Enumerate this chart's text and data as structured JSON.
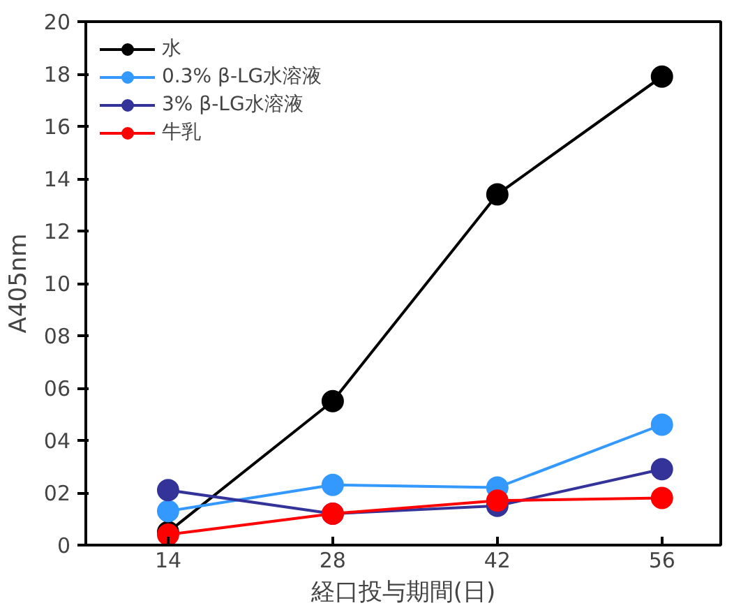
{
  "chart_data": {
    "type": "line",
    "xlabel": "経口投与期間(日)",
    "ylabel": "A405nm",
    "x": [
      14,
      28,
      42,
      56
    ],
    "series": [
      {
        "name": "水",
        "color": "#000000",
        "values": [
          0.5,
          5.5,
          13.4,
          17.9
        ]
      },
      {
        "name": "0.3% β-LG水溶液",
        "color": "#3399ff",
        "values": [
          1.3,
          2.3,
          2.2,
          4.6
        ]
      },
      {
        "name": "3% β-LG水溶液",
        "color": "#333399",
        "values": [
          2.1,
          1.2,
          1.5,
          2.9
        ]
      },
      {
        "name": "牛乳",
        "color": "#ff0000",
        "values": [
          0.4,
          1.2,
          1.7,
          1.8
        ]
      }
    ],
    "xlim": [
      7,
      61
    ],
    "xticks": [
      14,
      28,
      42,
      56
    ],
    "ylim": [
      0,
      20
    ],
    "yticks": [
      0,
      {
        "value": 2,
        "label": "02"
      },
      {
        "value": 4,
        "label": "04"
      },
      {
        "value": 6,
        "label": "06"
      },
      {
        "value": 8,
        "label": "08"
      },
      10,
      12,
      14,
      16,
      18,
      20
    ],
    "marker": "circle",
    "line_style": "solid",
    "grid": false,
    "legend": "top left"
  }
}
